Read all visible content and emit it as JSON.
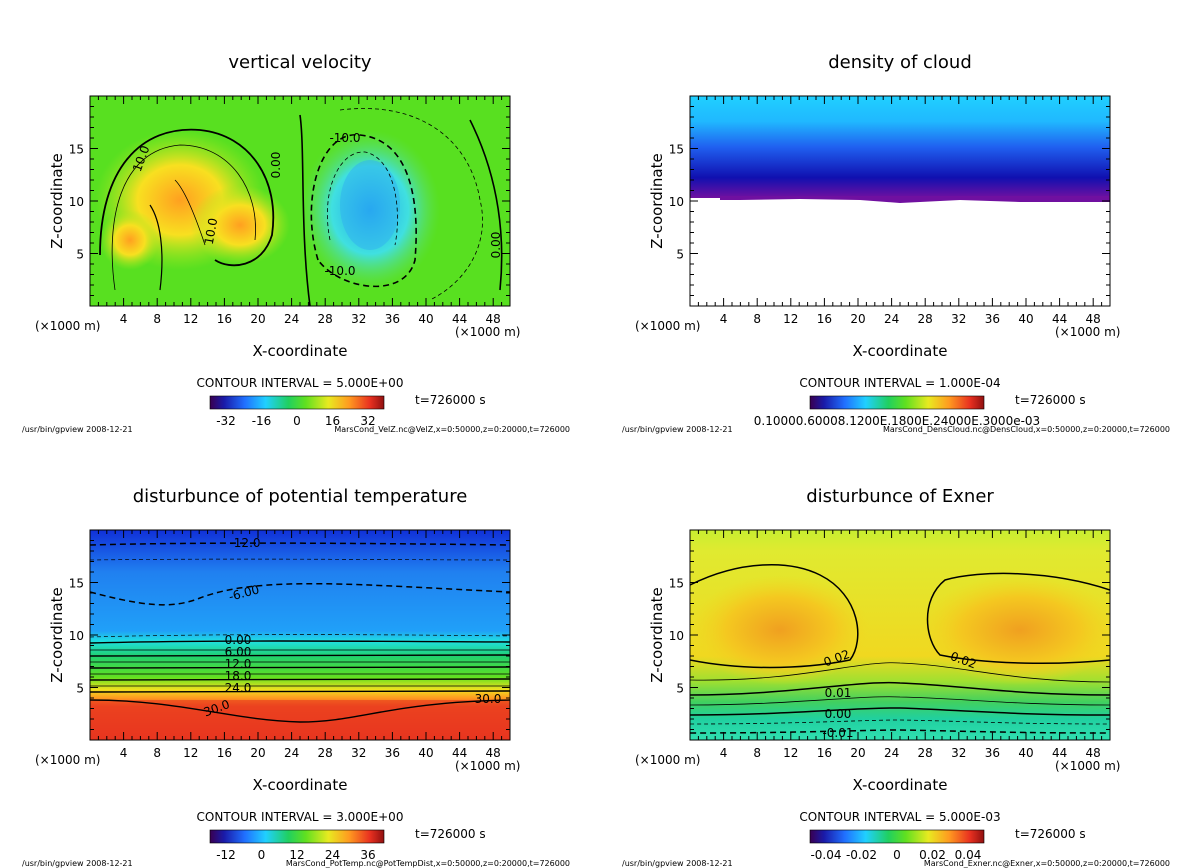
{
  "chart_data": [
    {
      "type": "heatmap",
      "title": "vertical velocity",
      "xlabel": "X-coordinate",
      "ylabel": "Z-coordinate",
      "x_unit_label": "(×1000 m)",
      "x_ticks": [
        4,
        8,
        12,
        16,
        20,
        24,
        28,
        32,
        36,
        40,
        44,
        48
      ],
      "y_ticks": [
        5,
        10,
        15
      ],
      "xlim": [
        0,
        50
      ],
      "ylim": [
        0,
        20
      ],
      "contour_interval": "CONTOUR INTERVAL = 5.000E+00",
      "time": "t=726000 s",
      "colorbar_ticks": [
        "-32",
        "-16",
        "0",
        "16",
        "32"
      ],
      "contour_labels": [
        "10.0",
        "0.00",
        "-10.0",
        "10.0",
        "-10.0",
        "0.00"
      ],
      "footer_left": "/usr/bin/gpview  2008-12-21",
      "footer_right": "MarsCond_VelZ.nc@VelZ,x=0:50000,z=0:20000,t=726000"
    },
    {
      "type": "heatmap",
      "title": "density of cloud",
      "xlabel": "X-coordinate",
      "ylabel": "Z-coordinate",
      "x_unit_label": "(×1000 m)",
      "x_ticks": [
        4,
        8,
        12,
        16,
        20,
        24,
        28,
        32,
        36,
        40,
        44,
        48
      ],
      "y_ticks": [
        5,
        10,
        15
      ],
      "xlim": [
        0,
        50
      ],
      "ylim": [
        0,
        20
      ],
      "contour_interval": "CONTOUR INTERVAL = 1.000E-04",
      "time": "t=726000 s",
      "colorbar_ticks": [
        "0.10000.60008.1200E.1800E.24000E.3000e-03"
      ],
      "contour_labels": [],
      "footer_left": "/usr/bin/gpview  2008-12-21",
      "footer_right": "MarsCond_DensCloud.nc@DensCloud,x=0:50000,z=0:20000,t=726000"
    },
    {
      "type": "heatmap",
      "title": "disturbunce of potential temperature",
      "xlabel": "X-coordinate",
      "ylabel": "Z-coordinate",
      "x_unit_label": "(×1000 m)",
      "x_ticks": [
        4,
        8,
        12,
        16,
        20,
        24,
        28,
        32,
        36,
        40,
        44,
        48
      ],
      "y_ticks": [
        5,
        10,
        15
      ],
      "xlim": [
        0,
        50
      ],
      "ylim": [
        0,
        20
      ],
      "contour_interval": "CONTOUR INTERVAL = 3.000E+00",
      "time": "t=726000 s",
      "colorbar_ticks": [
        "-12",
        "0",
        "12",
        "24",
        "36"
      ],
      "contour_labels": [
        "-12.0",
        "-6.00",
        "0.00",
        "6.00",
        "12.0",
        "18.0",
        "24.0",
        "30.0",
        "30.0"
      ],
      "footer_left": "/usr/bin/gpview  2008-12-21",
      "footer_right": "MarsCond_PotTemp.nc@PotTempDist,x=0:50000,z=0:20000,t=726000"
    },
    {
      "type": "heatmap",
      "title": "disturbunce of Exner",
      "xlabel": "X-coordinate",
      "ylabel": "Z-coordinate",
      "x_unit_label": "(×1000 m)",
      "x_ticks": [
        4,
        8,
        12,
        16,
        20,
        24,
        28,
        32,
        36,
        40,
        44,
        48
      ],
      "y_ticks": [
        5,
        10,
        15
      ],
      "xlim": [
        0,
        50
      ],
      "ylim": [
        0,
        20
      ],
      "contour_interval": "CONTOUR INTERVAL = 5.000E-03",
      "time": "t=726000 s",
      "colorbar_ticks": [
        "-0.04",
        "-0.02",
        "0",
        "0.02",
        "0.04"
      ],
      "contour_labels": [
        "0.02",
        "0.02",
        "0.01",
        "0.00",
        "-0.01"
      ],
      "footer_left": "/usr/bin/gpview  2008-12-21",
      "footer_right": "MarsCond_Exner.nc@Exner,x=0:50000,z=0:20000,t=726000"
    }
  ]
}
